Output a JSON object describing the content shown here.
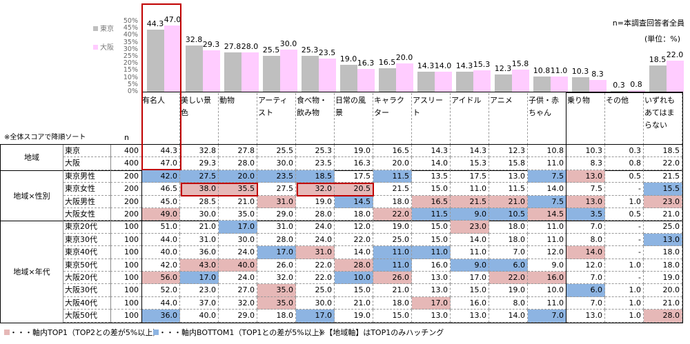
{
  "chart_data": {
    "type": "bar",
    "ylim": [
      0,
      50
    ],
    "yticks": [
      "0%",
      "5%",
      "10%",
      "15%",
      "20%",
      "25%",
      "30%",
      "35%",
      "40%",
      "45%",
      "50%"
    ],
    "legend_placement": "left",
    "categories": [
      "有名人",
      "美しい景色",
      "動物",
      "アーティスト",
      "食べ物・飲み物",
      "日常の風景",
      "キャラクター",
      "アスリート",
      "アイドル",
      "アニメ",
      "子供・赤ちゃん",
      "乗り物",
      "その他",
      "いずれもあてはまらない"
    ],
    "series": [
      {
        "name": "東京",
        "color": "#bfbfbf",
        "values": [
          44.3,
          32.8,
          27.8,
          25.5,
          25.3,
          19.0,
          16.5,
          14.3,
          14.3,
          12.3,
          10.8,
          10.3,
          0.3,
          18.5
        ],
        "labels": [
          "44.3",
          "32.8",
          "27.8",
          "25.5",
          "25.3",
          "19.0",
          "16.5",
          "14.3",
          "14.3",
          "12.3",
          "10.8",
          "10.3",
          "0.3",
          "18.5"
        ]
      },
      {
        "name": "大阪",
        "color": "#ffccff",
        "values": [
          47.0,
          29.3,
          28.0,
          30.0,
          23.5,
          16.3,
          20.0,
          14.0,
          15.3,
          15.8,
          11.0,
          8.3,
          0.8,
          22.0
        ],
        "labels": [
          "47.0",
          "29.3",
          "28.0",
          "30.0",
          "23.5",
          "16.3",
          "20.0",
          "14.0",
          "15.3",
          "15.8",
          "11.0",
          "8.3",
          "0.8",
          "22.0"
        ]
      }
    ]
  },
  "notes": {
    "base": "n=本調査回答者全員",
    "unit": "(単位：%)",
    "sort": "※全体スコアで降順ソート",
    "n_header": "n"
  },
  "columns": [
    "有名人",
    "美しい景色",
    "動物",
    "アーティスト",
    "食べ物・飲み物",
    "日常の風景",
    "キャラクター",
    "アスリート",
    "アイドル",
    "アニメ",
    "子供・赤ちゃん",
    "乗り物",
    "その他",
    "いずれもあてはまらない"
  ],
  "colors": {
    "top1": "#e6b8b7",
    "bottom1": "#8db4e2",
    "emphasis_box": "#c00000"
  },
  "groups": [
    {
      "label": "地域",
      "rows": 2
    },
    {
      "label": "地域×性別",
      "rows": 4
    },
    {
      "label": "地域×年代",
      "rows": 8
    }
  ],
  "rows": [
    {
      "label": "東京",
      "n": "400",
      "values": [
        "44.3",
        "32.8",
        "27.8",
        "25.5",
        "25.3",
        "19.0",
        "16.5",
        "14.3",
        "14.3",
        "12.3",
        "10.8",
        "10.3",
        "0.3",
        "18.5"
      ],
      "hl": ".............."
    },
    {
      "label": "大阪",
      "n": "400",
      "values": [
        "47.0",
        "29.3",
        "28.0",
        "30.0",
        "23.5",
        "16.3",
        "20.0",
        "14.0",
        "15.3",
        "15.8",
        "11.0",
        "8.3",
        "0.8",
        "22.0"
      ],
      "hl": ".............."
    },
    {
      "label": "東京男性",
      "n": "200",
      "values": [
        "42.0",
        "27.5",
        "20.0",
        "23.5",
        "18.5",
        "17.5",
        "11.5",
        "13.5",
        "17.5",
        "13.0",
        "7.5",
        "13.0",
        "0.5",
        "21.5"
      ],
      "hl": "bbbbb.b...bp.."
    },
    {
      "label": "東京女性",
      "n": "200",
      "values": [
        "46.5",
        "38.0",
        "35.5",
        "27.5",
        "32.0",
        "20.5",
        "21.5",
        "15.0",
        "11.0",
        "11.5",
        "14.0",
        "7.5",
        "-",
        "15.5"
      ],
      "hl": ".pp.pp.......b"
    },
    {
      "label": "大阪男性",
      "n": "200",
      "values": [
        "45.0",
        "28.5",
        "21.0",
        "31.0",
        "19.0",
        "14.5",
        "18.0",
        "16.5",
        "21.5",
        "21.0",
        "7.5",
        "13.0",
        "1.0",
        "23.0"
      ],
      "hl": "...p.b.pppbp.p"
    },
    {
      "label": "大阪女性",
      "n": "200",
      "values": [
        "49.0",
        "30.0",
        "35.0",
        "29.0",
        "28.0",
        "18.0",
        "22.0",
        "11.5",
        "9.0",
        "10.5",
        "14.5",
        "3.5",
        "0.5",
        "21.0"
      ],
      "hl": "p.....pbbbpb.."
    },
    {
      "label": "東京20代",
      "n": "100",
      "values": [
        "51.0",
        "21.0",
        "17.0",
        "31.0",
        "24.0",
        "12.0",
        "19.0",
        "15.0",
        "23.0",
        "18.0",
        "11.0",
        "7.0",
        "-",
        "25.0"
      ],
      "hl": "..b.....p....."
    },
    {
      "label": "東京30代",
      "n": "100",
      "values": [
        "44.0",
        "31.0",
        "30.0",
        "28.0",
        "24.0",
        "22.0",
        "25.0",
        "15.0",
        "14.0",
        "18.0",
        "11.0",
        "8.0",
        "-",
        "13.0"
      ],
      "hl": ".............b"
    },
    {
      "label": "東京40代",
      "n": "100",
      "values": [
        "40.0",
        "36.0",
        "24.0",
        "17.0",
        "31.0",
        "14.0",
        "11.0",
        "11.0",
        "11.0",
        "7.0",
        "12.0",
        "14.0",
        "-",
        "18.0"
      ],
      "hl": "...bp.bb...p.."
    },
    {
      "label": "東京50代",
      "n": "100",
      "values": [
        "42.0",
        "43.0",
        "40.0",
        "26.0",
        "22.0",
        "28.0",
        "11.0",
        "16.0",
        "9.0",
        "6.0",
        "9.0",
        "12.0",
        "1.0",
        "18.0"
      ],
      "hl": ".pp..pb.bb...."
    },
    {
      "label": "大阪20代",
      "n": "100",
      "values": [
        "56.0",
        "17.0",
        "24.0",
        "32.0",
        "22.0",
        "10.0",
        "26.0",
        "13.0",
        "17.0",
        "22.0",
        "16.0",
        "7.0",
        "-",
        "19.0"
      ],
      "hl": "pb...bp..pp..."
    },
    {
      "label": "大阪30代",
      "n": "100",
      "values": [
        "52.0",
        "23.0",
        "27.0",
        "35.0",
        "25.0",
        "15.0",
        "21.0",
        "13.0",
        "15.0",
        "19.0",
        "10.0",
        "6.0",
        "1.0",
        "20.0"
      ],
      "hl": "...p.......b.."
    },
    {
      "label": "大阪40代",
      "n": "100",
      "values": [
        "44.0",
        "37.0",
        "32.0",
        "35.0",
        "30.0",
        "21.0",
        "18.0",
        "17.0",
        "16.0",
        "8.0",
        "11.0",
        "7.0",
        "1.0",
        "21.0"
      ],
      "hl": "...p...p......"
    },
    {
      "label": "大阪50代",
      "n": "100",
      "values": [
        "36.0",
        "40.0",
        "29.0",
        "18.0",
        "17.0",
        "19.0",
        "15.0",
        "13.0",
        "13.0",
        "14.0",
        "7.0",
        "13.0",
        "1.0",
        "28.0"
      ],
      "hl": "b...b.....b..p"
    }
  ],
  "footer": {
    "top1": "・・・軸内TOP1（TOP2との差が5%以上）",
    "bottom1": "・・・軸内BOTTOM1（TOP1との差が5%以上）",
    "note": "※【地域軸】はTOP1のみハッチング"
  }
}
